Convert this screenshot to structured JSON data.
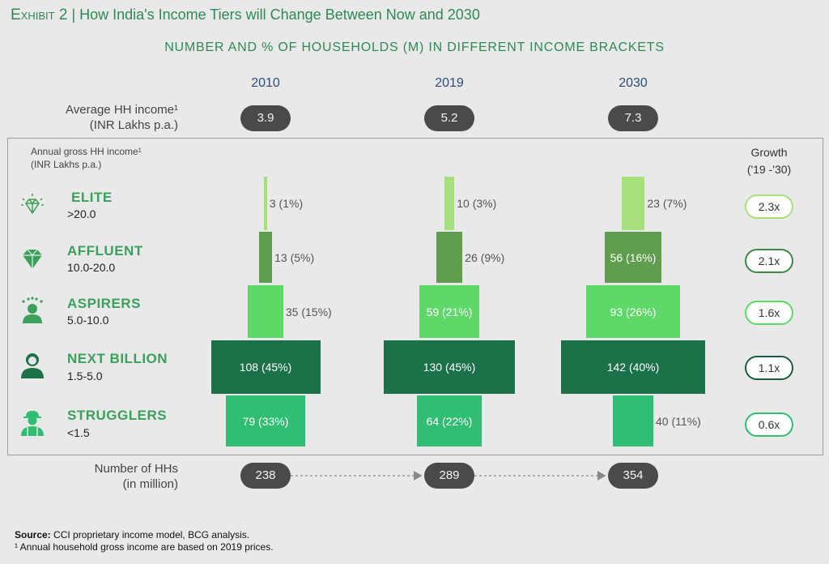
{
  "exhibit": {
    "prefix": "Exhibit 2",
    "title": "How India's Income Tiers will Change Between Now and 2030"
  },
  "subtitle": "NUMBER AND % OF HOUSEHOLDS (M) IN DIFFERENT INCOME BRACKETS",
  "average_income": {
    "label_line1": "Average HH income¹",
    "label_line2": "(INR Lakhs p.a.)",
    "values": [
      "3.9",
      "5.2",
      "7.3"
    ]
  },
  "annual_income_label": {
    "line1": "Annual gross HH income¹",
    "line2": "(INR Lakhs p.a.)"
  },
  "growth_header": {
    "line1": "Growth",
    "line2": "('19 -'30)"
  },
  "number_hh": {
    "label_line1": "Number of HHs",
    "label_line2": "(in million)",
    "values": [
      "238",
      "289",
      "354"
    ]
  },
  "colors": {
    "elite": "#a6e07a",
    "affluent": "#5f9e4c",
    "aspirers": "#5fd86a",
    "next_billion": "#1b7248",
    "strugglers": "#2fbe72",
    "accent_green": "#2e8a55"
  },
  "chart_data": {
    "type": "bar",
    "title": "NUMBER AND % OF HOUSEHOLDS (M) IN DIFFERENT INCOME BRACKETS",
    "categories": [
      "2010",
      "2019",
      "2030"
    ],
    "series": [
      {
        "name": "ELITE",
        "range": ">20.0",
        "icon": "diamond-sparkle-icon",
        "values": [
          3,
          10,
          23
        ],
        "labels": [
          "3 (1%)",
          "10 (3%)",
          "23 (7%)"
        ],
        "growth": "2.3x"
      },
      {
        "name": "AFFLUENT",
        "range": "10.0-20.0",
        "icon": "diamond-icon",
        "values": [
          13,
          26,
          56
        ],
        "labels": [
          "13 (5%)",
          "26 (9%)",
          "56 (16%)"
        ],
        "growth": "2.1x"
      },
      {
        "name": "ASPIRERS",
        "range": "5.0-10.0",
        "icon": "person-stars-icon",
        "values": [
          35,
          59,
          93
        ],
        "labels": [
          "35 (15%)",
          "59 (21%)",
          "93 (26%)"
        ],
        "growth": "1.6x"
      },
      {
        "name": "NEXT BILLION",
        "range": "1.5-5.0",
        "icon": "person-icon",
        "values": [
          108,
          130,
          142
        ],
        "labels": [
          "108 (45%)",
          "130 (45%)",
          "142 (40%)"
        ],
        "growth": "1.1x"
      },
      {
        "name": "STRUGGLERS",
        "range": "<1.5",
        "icon": "worker-cap-icon",
        "values": [
          79,
          64,
          40
        ],
        "labels": [
          "79 (33%)",
          "64 (22%)",
          "40 (11%)"
        ],
        "growth": "0.6x"
      }
    ]
  },
  "source": {
    "label": "Source:",
    "text": " CCI proprietary income model, BCG analysis.",
    "footnote": "¹ Annual household gross income are based on 2019 prices."
  }
}
